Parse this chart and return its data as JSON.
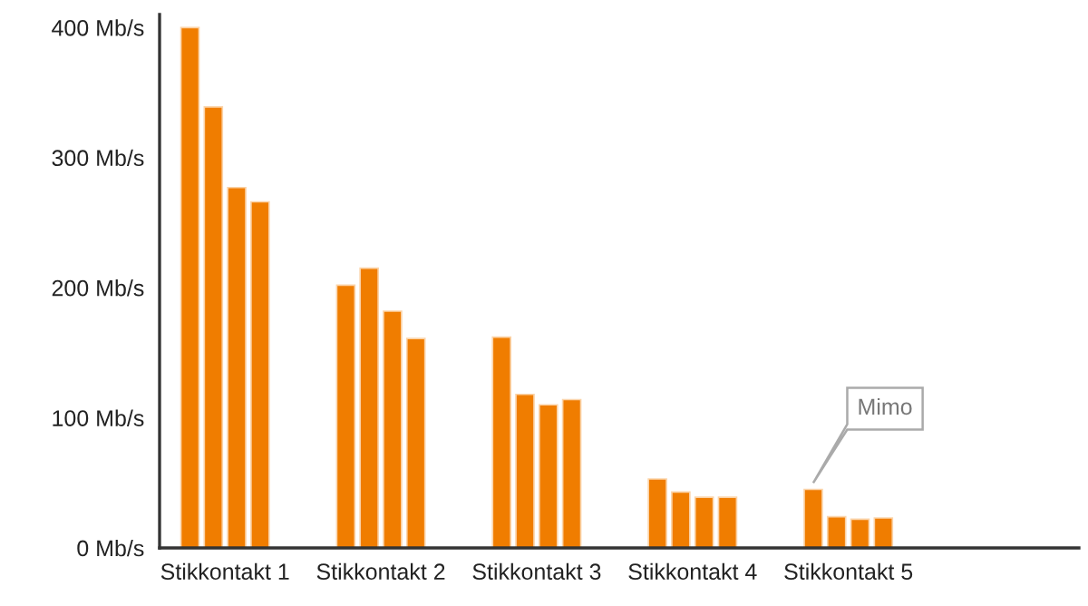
{
  "chart_data": {
    "type": "bar",
    "categories": [
      "Stikkontakt 1",
      "Stikkontakt 2",
      "Stikkontakt 3",
      "Stikkontakt 4",
      "Stikkontakt 5"
    ],
    "series": [
      {
        "color": "#f07d00",
        "values": [
          400,
          202,
          162,
          53,
          45
        ]
      },
      {
        "color": "#f07d00",
        "values": [
          339,
          215,
          118,
          43,
          24
        ]
      },
      {
        "color": "#f07d00",
        "values": [
          277,
          182,
          110,
          39,
          22
        ]
      },
      {
        "color": "#f07d00",
        "values": [
          266,
          161,
          114,
          39,
          23
        ]
      }
    ],
    "ylim": [
      0,
      410
    ],
    "yticks": [
      {
        "value": 0,
        "label": "0 Mb/s"
      },
      {
        "value": 100,
        "label": "100 Mb/s"
      },
      {
        "value": 200,
        "label": "200 Mb/s"
      },
      {
        "value": 300,
        "label": "300 Mb/s"
      },
      {
        "value": 400,
        "label": "400 Mb/s"
      }
    ],
    "grid": false,
    "legend": false,
    "annotations": [
      "Mimo"
    ]
  }
}
